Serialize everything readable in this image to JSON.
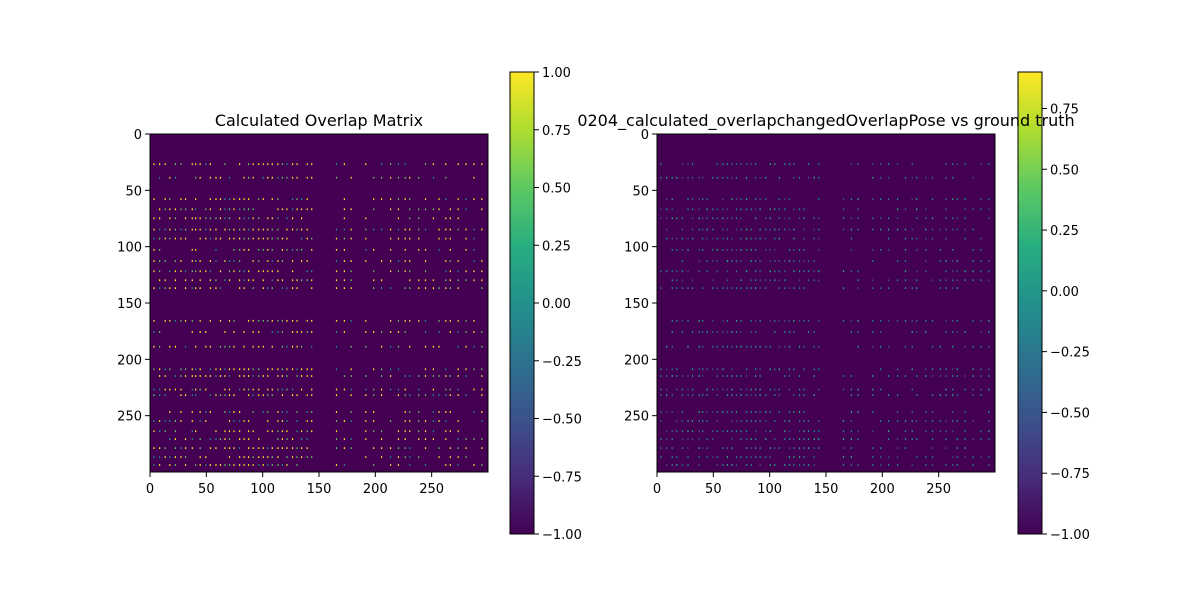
{
  "chart_data": [
    {
      "type": "heatmap",
      "title": "Calculated Overlap Matrix",
      "xlabel": "",
      "ylabel": "",
      "xlim": [
        0,
        300
      ],
      "ylim": [
        300,
        0
      ],
      "xticks": [
        0,
        50,
        100,
        150,
        200,
        250
      ],
      "yticks": [
        0,
        50,
        100,
        150,
        200,
        250
      ],
      "colormap": "viridis",
      "background_value": -1.0,
      "colorbar": {
        "min": -1.0,
        "max": 1.0,
        "ticks": [
          "1.00",
          "0.75",
          "0.50",
          "0.25",
          "0.00",
          "−0.25",
          "−0.50",
          "−0.75",
          "−1.00"
        ]
      },
      "row_bands": [
        26,
        38,
        57,
        66,
        74,
        84,
        92,
        102,
        112,
        121,
        129,
        136,
        165,
        175,
        188,
        208,
        214,
        226,
        231,
        246,
        254,
        263,
        270,
        278,
        286,
        293
      ],
      "column_bands": [
        3,
        8,
        13,
        17,
        22,
        27,
        31,
        37,
        40,
        44,
        49,
        53,
        58,
        62,
        66,
        70,
        74,
        79,
        83,
        87,
        91,
        96,
        100,
        104,
        108,
        113,
        117,
        121,
        126,
        130,
        134,
        139,
        143,
        165,
        172,
        178,
        191,
        198,
        205,
        213,
        220,
        226,
        230,
        238,
        244,
        251,
        256,
        262,
        266,
        273,
        280,
        287,
        294
      ]
    },
    {
      "type": "heatmap",
      "title": "0204_calculated_overlapchangedOverlapPose vs ground truth",
      "xlabel": "",
      "ylabel": "",
      "xlim": [
        0,
        300
      ],
      "ylim": [
        300,
        0
      ],
      "xticks": [
        0,
        50,
        100,
        150,
        200,
        250
      ],
      "yticks": [
        0,
        50,
        100,
        150,
        200,
        250
      ],
      "colormap": "viridis",
      "background_value": -1.0,
      "colorbar": {
        "min": -1.0,
        "max": 0.9,
        "ticks": [
          "0.75",
          "0.50",
          "0.25",
          "0.00",
          "−0.25",
          "−0.50",
          "−0.75",
          "−1.00"
        ],
        "tick_values": [
          0.75,
          0.5,
          0.25,
          0.0,
          -0.25,
          -0.5,
          -0.75,
          -1.0
        ]
      },
      "row_bands": [
        26,
        38,
        57,
        66,
        74,
        84,
        92,
        102,
        112,
        121,
        129,
        136,
        165,
        175,
        188,
        208,
        214,
        226,
        231,
        246,
        254,
        263,
        270,
        278,
        286,
        293
      ],
      "column_bands": [
        3,
        8,
        13,
        17,
        22,
        27,
        31,
        37,
        40,
        44,
        49,
        53,
        58,
        62,
        66,
        70,
        74,
        79,
        83,
        87,
        91,
        96,
        100,
        104,
        108,
        113,
        117,
        121,
        126,
        130,
        134,
        139,
        143,
        165,
        172,
        178,
        191,
        198,
        205,
        213,
        220,
        226,
        230,
        238,
        244,
        251,
        256,
        262,
        266,
        273,
        280,
        287,
        294
      ]
    }
  ]
}
